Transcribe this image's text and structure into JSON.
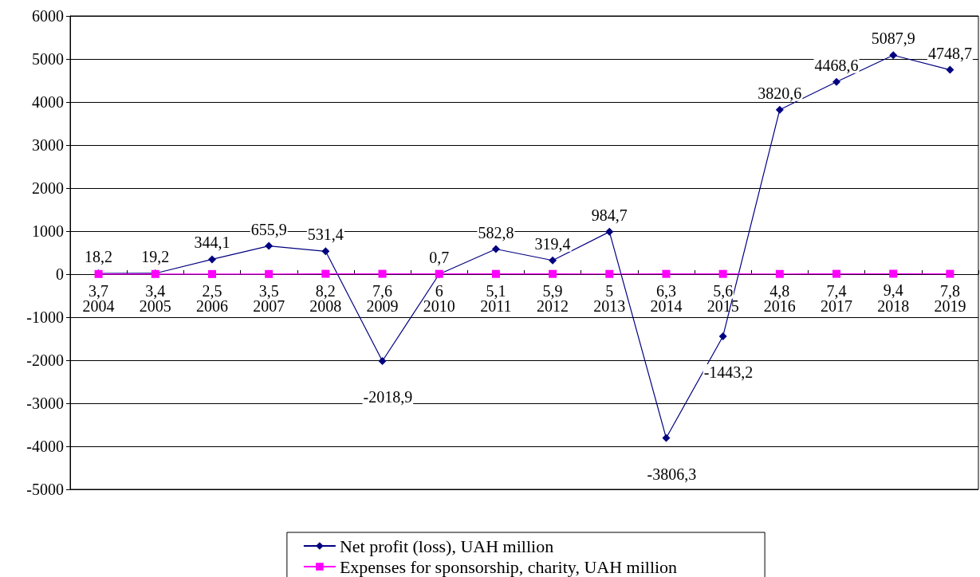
{
  "chart_data": {
    "type": "line",
    "categories": [
      "2004",
      "2005",
      "2006",
      "2007",
      "2008",
      "2009",
      "2010",
      "2011",
      "2012",
      "2013",
      "2014",
      "2015",
      "2016",
      "2017",
      "2018",
      "2019"
    ],
    "series": [
      {
        "name": "Net profit (loss), UAH million",
        "color": "#000080",
        "marker": "diamond",
        "values": [
          18.2,
          19.2,
          344.1,
          655.9,
          531.4,
          -2018.9,
          0.7,
          582.8,
          319.4,
          984.7,
          -3806.3,
          -1443.2,
          3820.6,
          4468.6,
          5087.9,
          4748.7
        ],
        "value_labels": [
          "18,2",
          "19,2",
          "344,1",
          "655,9",
          "531,4",
          "-2018,9",
          "0,7",
          "582,8",
          "319,4",
          "984,7",
          "-3806,3",
          "-1443,2",
          "3820,6",
          "4468,6",
          "5087,9",
          "4748,7"
        ]
      },
      {
        "name": "Expenses for sponsorship, charity, UAH million",
        "color": "#ff00ff",
        "marker": "square",
        "values": [
          3.7,
          3.4,
          2.5,
          3.5,
          8.2,
          7.6,
          6,
          5.1,
          5.9,
          5,
          6.3,
          5.6,
          4.8,
          7.4,
          9.4,
          7.8
        ],
        "value_labels": [
          "3,7",
          "3,4",
          "2,5",
          "3,5",
          "8,2",
          "7,6",
          "6",
          "5,1",
          "5,9",
          "5",
          "6,3",
          "5,6",
          "4,8",
          "7,4",
          "9,4",
          "7,8"
        ]
      }
    ],
    "ylim": [
      -5000,
      6000
    ],
    "yticks": [
      -5000,
      -4000,
      -3000,
      -2000,
      -1000,
      0,
      1000,
      2000,
      3000,
      4000,
      5000,
      6000
    ],
    "grid": "y",
    "legend": "bottom"
  }
}
